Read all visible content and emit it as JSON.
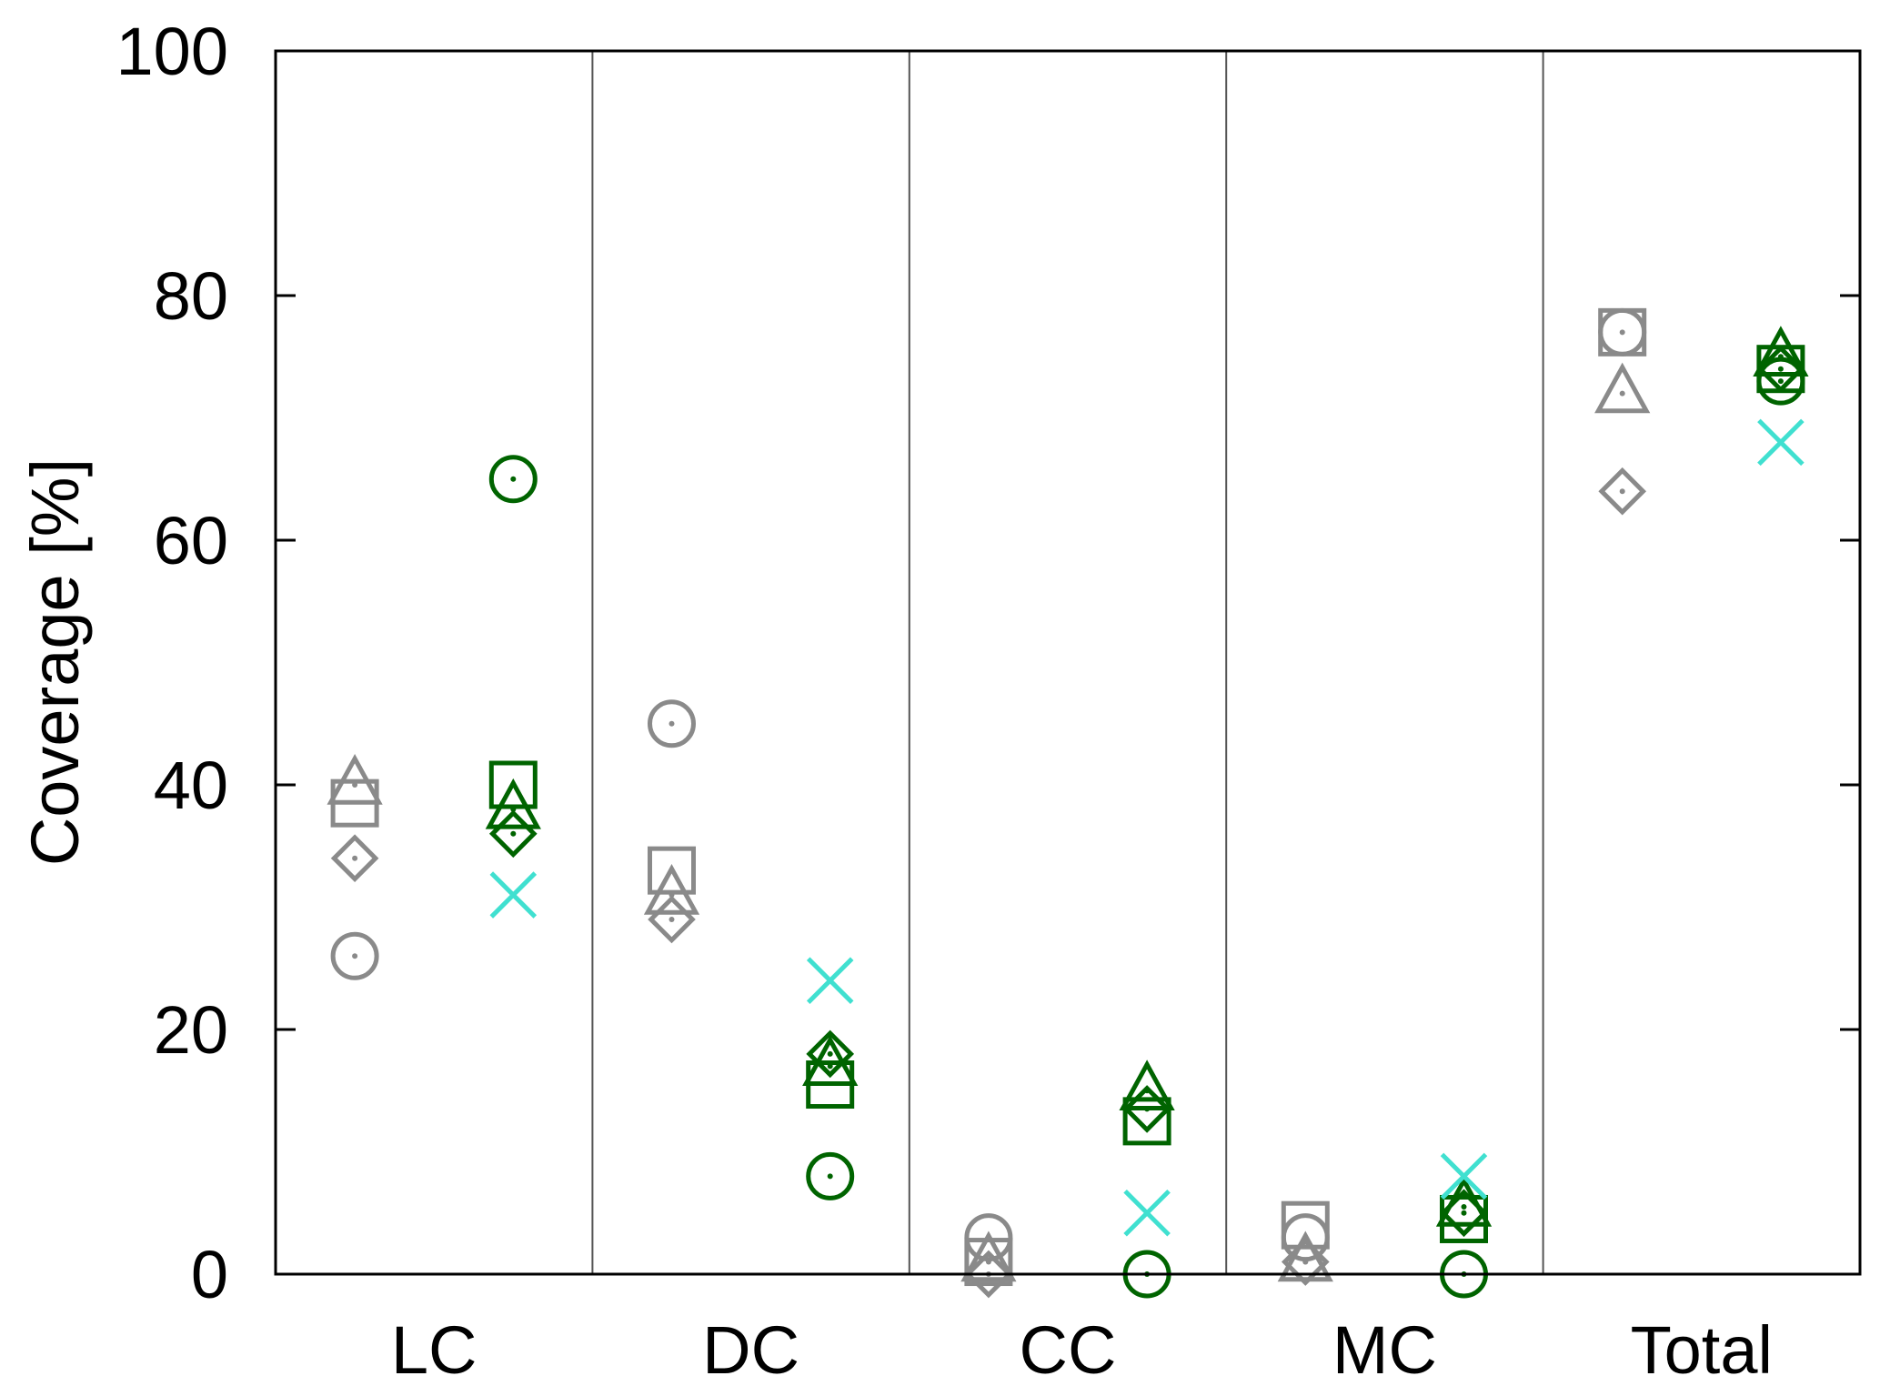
{
  "chart_data": {
    "type": "scatter",
    "title": "",
    "xlabel": "",
    "ylabel": "Coverage [%]",
    "ylim": [
      0,
      100
    ],
    "yticks": [
      0,
      20,
      40,
      60,
      80,
      100
    ],
    "categories": [
      "LC",
      "DC",
      "CC",
      "MC",
      "Total"
    ],
    "grid": "vertical separators between categories only",
    "legend": "none",
    "colors": {
      "gray": "#8a8a8a",
      "green": "#006400",
      "turquoise": "#40e0d0",
      "axis": "#000000",
      "separator": "#555555"
    },
    "groups": [
      {
        "color": "gray",
        "series": [
          {
            "marker": "dotted-circle",
            "values": [
              26,
              45,
              3,
              3,
              77
            ]
          },
          {
            "marker": "square",
            "values": [
              38.5,
              33,
              1,
              4,
              77
            ]
          },
          {
            "marker": "triangle",
            "values": [
              40,
              31,
              1,
              1,
              72
            ]
          },
          {
            "marker": "dotted-diamond",
            "values": [
              34,
              29,
              0,
              1,
              64
            ]
          }
        ]
      },
      {
        "color": "green",
        "series": [
          {
            "marker": "dotted-circle",
            "values": [
              65,
              8,
              0,
              0,
              73
            ]
          },
          {
            "marker": "square",
            "values": [
              40,
              15.5,
              12.5,
              4.5,
              74
            ]
          },
          {
            "marker": "triangle",
            "values": [
              38,
              17,
              15,
              5.5,
              75
            ]
          },
          {
            "marker": "dotted-diamond",
            "values": [
              36,
              18,
              13.5,
              5,
              74
            ]
          }
        ]
      },
      {
        "color": "turquoise",
        "series": [
          {
            "marker": "cross",
            "values": [
              31,
              24,
              5,
              8,
              68
            ]
          }
        ]
      }
    ]
  }
}
